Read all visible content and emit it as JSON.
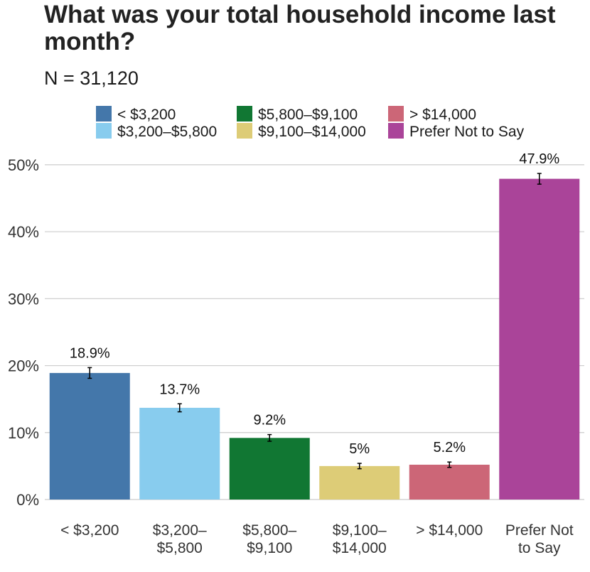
{
  "chart_data": {
    "type": "bar",
    "title": "What was your total household income last month?",
    "subtitle": "N = 31,120",
    "categories": [
      "< $3,200",
      "$3,200–$5,800",
      "$5,800–$9,100",
      "$9,100–$14,000",
      "> $14,000",
      "Prefer Not to Say"
    ],
    "category_tick_labels": [
      [
        "< $3,200"
      ],
      [
        "$3,200–",
        "$5,800"
      ],
      [
        "$5,800–",
        "$9,100"
      ],
      [
        "$9,100–",
        "$14,000"
      ],
      [
        "> $14,000"
      ],
      [
        "Prefer Not",
        "to Say"
      ]
    ],
    "values": [
      18.9,
      13.7,
      9.2,
      5.0,
      5.2,
      47.9
    ],
    "data_labels": [
      "18.9%",
      "13.7%",
      "9.2%",
      "5%",
      "5.2%",
      "47.9%"
    ],
    "error_bars": [
      [
        18.1,
        19.7
      ],
      [
        13.1,
        14.3
      ],
      [
        8.7,
        9.7
      ],
      [
        4.6,
        5.4
      ],
      [
        4.8,
        5.6
      ],
      [
        47.1,
        48.7
      ]
    ],
    "colors": [
      "#4477aa",
      "#88ccee",
      "#117733",
      "#ddcc77",
      "#cc6677",
      "#aa4499"
    ],
    "ylim": [
      0,
      52
    ],
    "yticks": [
      0,
      10,
      20,
      30,
      40,
      50
    ],
    "ytick_labels": [
      "0%",
      "10%",
      "20%",
      "30%",
      "40%",
      "50%"
    ],
    "xlabel": "",
    "ylabel": "",
    "legend": {
      "position": "top",
      "columns": 3,
      "entries": [
        "< $3,200",
        "$3,200–$5,800",
        "$5,800–$9,100",
        "$9,100–$14,000",
        "> $14,000",
        "Prefer Not to Say"
      ]
    },
    "grid": "horizontal"
  }
}
